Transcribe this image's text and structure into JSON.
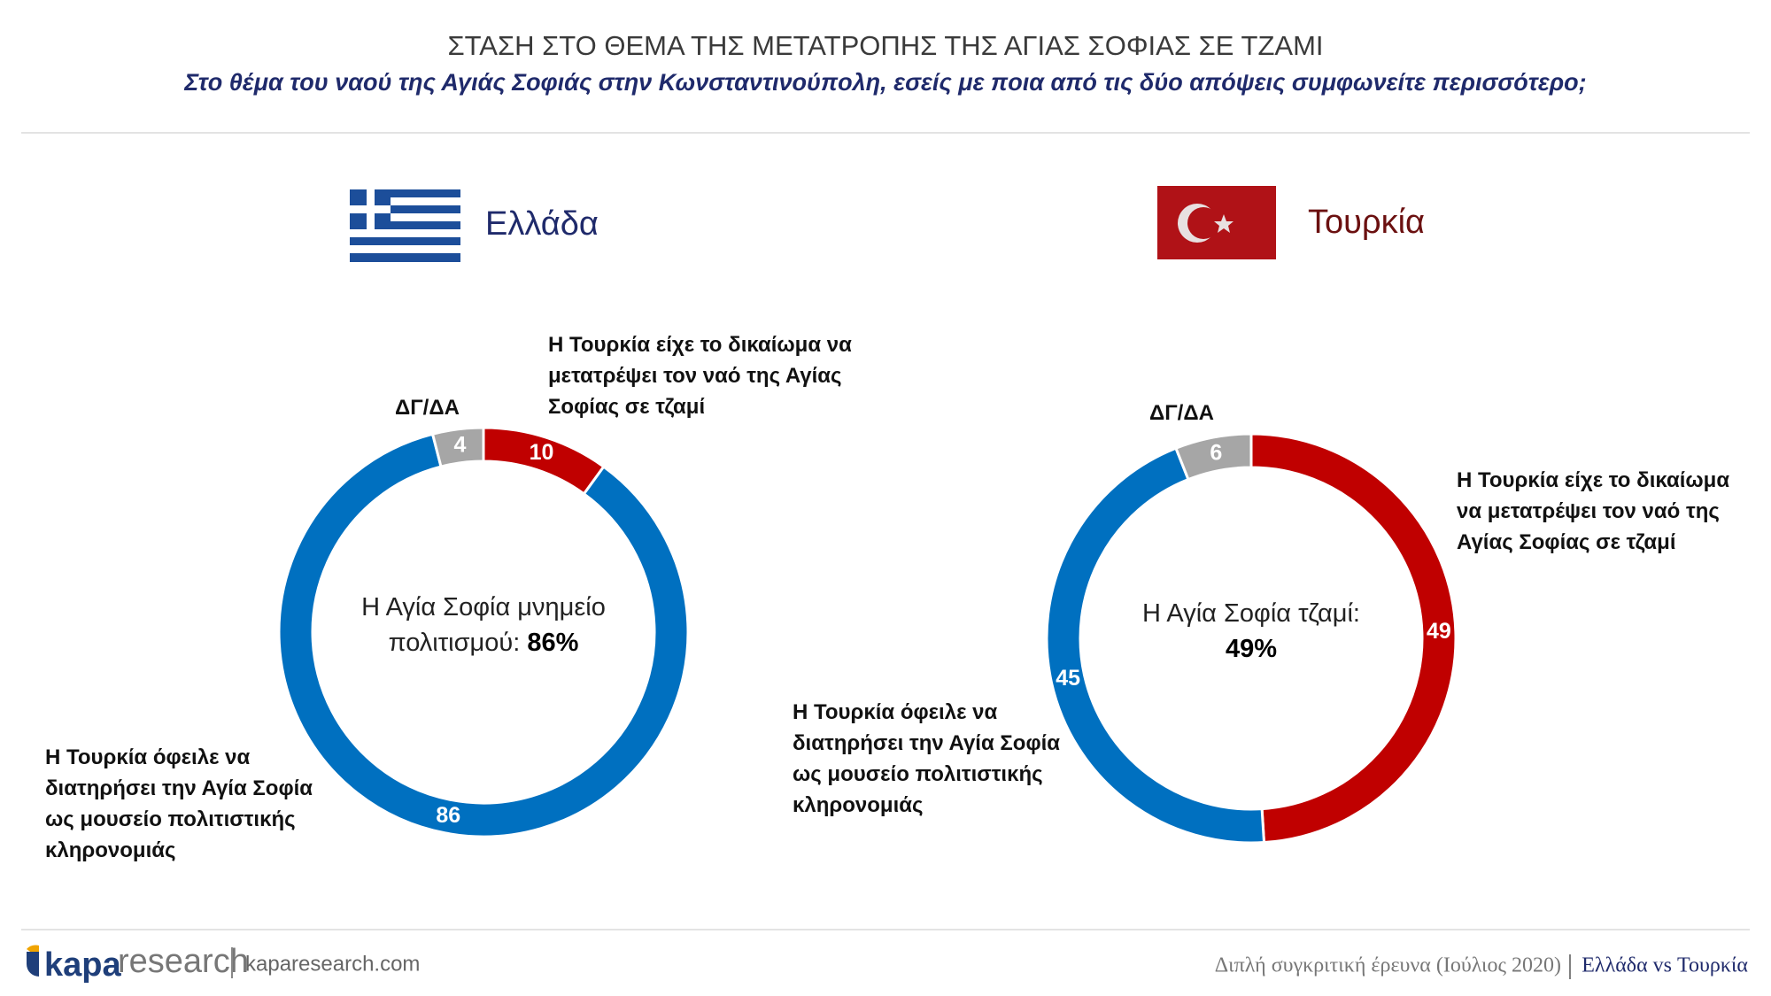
{
  "header": {
    "title": "ΣΤΑΣΗ ΣΤΟ ΘΕΜΑ ΤΗΣ ΜΕΤΑΤΡΟΠΗΣ ΤΗΣ ΑΓΙΑΣ ΣΟΦΙΑΣ ΣΕ ΤΖΑΜΙ",
    "subtitle": "Στο θέμα του ναού της Αγιάς Σοφιάς στην Κωνσταντινούπολη, εσείς με ποια από τις δύο απόψεις συμφωνείτε περισσότερο;"
  },
  "chart_data": [
    {
      "type": "donut",
      "title": "Ελλάδα",
      "categories": [
        "Η Τουρκία είχε το δικαίωμα να μετατρέψει τον ναό της Αγίας Σοφίας σε τζαμί",
        "Η Τουρκία όφειλε να διατηρήσει την Αγία Σοφία ως μουσείο πολιτιστικής κληρονομιάς",
        "ΔΓ/ΔΑ"
      ],
      "values": [
        10,
        86,
        4
      ],
      "colors": [
        "#c00000",
        "#0070c0",
        "#a6a6a6"
      ],
      "center_label": "Η Αγία Σοφία μνημείο πολιτισμού:",
      "center_value_label": "86%"
    },
    {
      "type": "donut",
      "title": "Τουρκία",
      "categories": [
        "Η Τουρκία είχε το δικαίωμα να μετατρέψει τον ναό της Αγίας Σοφίας σε τζαμί",
        "Η Τουρκία όφειλε να διατηρήσει την Αγία Σοφία ως μουσείο πολιτιστικής κληρονομιάς",
        "ΔΓ/ΔΑ"
      ],
      "values": [
        49,
        45,
        6
      ],
      "colors": [
        "#c00000",
        "#0070c0",
        "#a6a6a6"
      ],
      "center_label": "Η Αγία Σοφία τζαμί:",
      "center_value_label": "49%"
    }
  ],
  "footer": {
    "brand": "kapa",
    "brand_suffix": "research",
    "website": "kaparesearch.com",
    "survey": "Διπλή συγκριτική έρευνα (Ιούλιος 2020)",
    "comparison": "Ελλάδα vs Τουρκία"
  }
}
